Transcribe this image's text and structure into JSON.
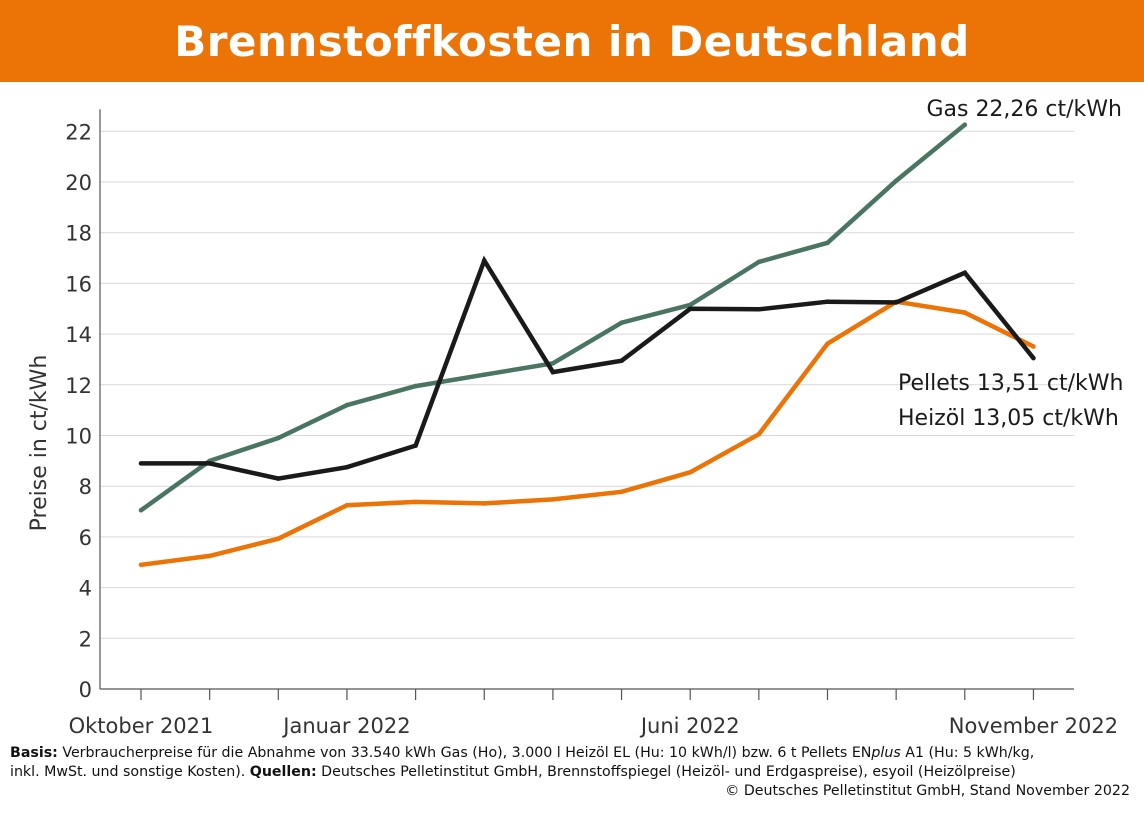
{
  "chart_data": {
    "type": "line",
    "title": "Brennstoffkosten in Deutschland",
    "ylabel": "Preise in ct/kWh",
    "xlabel": "",
    "ylim": [
      0,
      22
    ],
    "yticks": [
      "0",
      "2",
      "4",
      "6",
      "8",
      "10",
      "12",
      "14",
      "16",
      "18",
      "20",
      "22"
    ],
    "x_tick_labels": [
      {
        "index": 0,
        "label": "Oktober 2021"
      },
      {
        "index": 3,
        "label": "Januar 2022"
      },
      {
        "index": 8,
        "label": "Juni 2022"
      },
      {
        "index": 13,
        "label": "November 2022"
      }
    ],
    "x": [
      "2021-10",
      "2021-11",
      "2021-12",
      "2022-01",
      "2022-02",
      "2022-03",
      "2022-04",
      "2022-05",
      "2022-06",
      "2022-07",
      "2022-08",
      "2022-09",
      "2022-10",
      "2022-11"
    ],
    "grid": true,
    "series": [
      {
        "name": "Gas",
        "color": "#4a7562",
        "values": [
          7.05,
          9.0,
          9.9,
          11.2,
          11.95,
          12.4,
          12.85,
          14.45,
          15.15,
          16.85,
          17.6,
          20.05,
          22.26,
          null
        ]
      },
      {
        "name": "Heizöl",
        "color": "#1a1a1a",
        "values": [
          8.9,
          8.9,
          8.3,
          8.75,
          9.6,
          16.9,
          12.5,
          12.95,
          15.0,
          14.98,
          15.28,
          15.25,
          16.42,
          13.05
        ]
      },
      {
        "name": "Pellets",
        "color": "#ec7306",
        "values": [
          4.9,
          5.25,
          5.93,
          7.25,
          7.38,
          7.32,
          7.48,
          7.78,
          8.55,
          10.05,
          13.62,
          15.28,
          14.85,
          13.51
        ]
      }
    ],
    "annotations": [
      {
        "name": "Gas",
        "value": "22,26",
        "unit": "ct/kWh"
      },
      {
        "name": "Pellets",
        "value": "13,51",
        "unit": "ct/kWh"
      },
      {
        "name": "Heizöl",
        "value": "13,05",
        "unit": "ct/kWh"
      }
    ]
  },
  "footnote": {
    "basis_label": "Basis:",
    "basis_text": " Verbraucherpreise für die Abnahme von 33.540 kWh Gas (Ho), 3.000 l Heizöl EL (Hu: 10 kWh/l) bzw. 6 t Pellets EN",
    "plus_text": "plus",
    "basis_text_2": " A1 (Hu: 5 kWh/kg,",
    "line2_text": "inkl. MwSt. und sonstige Kosten). ",
    "quellen_label": "Quellen:",
    "quellen_text": " Deutsches Pelletinstitut GmbH, Brennstoffspiegel (Heizöl- und Erdgaspreise), esyoil (Heizölpreise)",
    "copyright": "© Deutsches Pelletinstitut GmbH, Stand November 2022"
  }
}
